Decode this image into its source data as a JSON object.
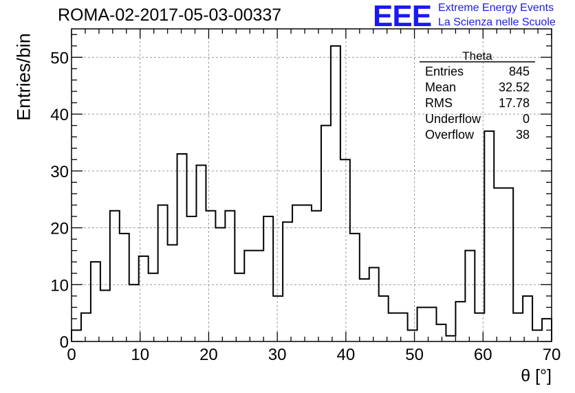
{
  "header": {
    "run_title": "ROMA-02-2017-05-03-00337",
    "logo": "EEE",
    "logo_line1": "Extreme Energy Events",
    "logo_line2": "La Scienza nelle Scuole",
    "logo_color": "#1a1aee"
  },
  "chart_data": {
    "type": "bar",
    "style": "step-histogram",
    "xlabel": "θ [°]",
    "ylabel": "Entries/bin",
    "xlim": [
      0,
      70
    ],
    "ylim": [
      0,
      55
    ],
    "bin_width": 1.4,
    "grid": true,
    "x_ticks": [
      0,
      10,
      20,
      30,
      40,
      50,
      60,
      70
    ],
    "y_ticks": [
      0,
      10,
      20,
      30,
      40,
      50
    ],
    "values": [
      2,
      5,
      14,
      9,
      23,
      19,
      10,
      15,
      12,
      24,
      17,
      33,
      22,
      31,
      23,
      20,
      23,
      12,
      16,
      16,
      22,
      8,
      21,
      24,
      24,
      23,
      38,
      52,
      32,
      19,
      11,
      13,
      8,
      5,
      5,
      2,
      6,
      6,
      3,
      1,
      7,
      16,
      5,
      37,
      27,
      27,
      5,
      8,
      2,
      4
    ],
    "stats_box": {
      "title": "Theta",
      "rows": [
        {
          "label": "Entries",
          "value": "845"
        },
        {
          "label": "Mean",
          "value": "32.52"
        },
        {
          "label": "RMS",
          "value": "17.78"
        },
        {
          "label": "Underflow",
          "value": "0"
        },
        {
          "label": "Overflow",
          "value": "38"
        }
      ]
    }
  }
}
